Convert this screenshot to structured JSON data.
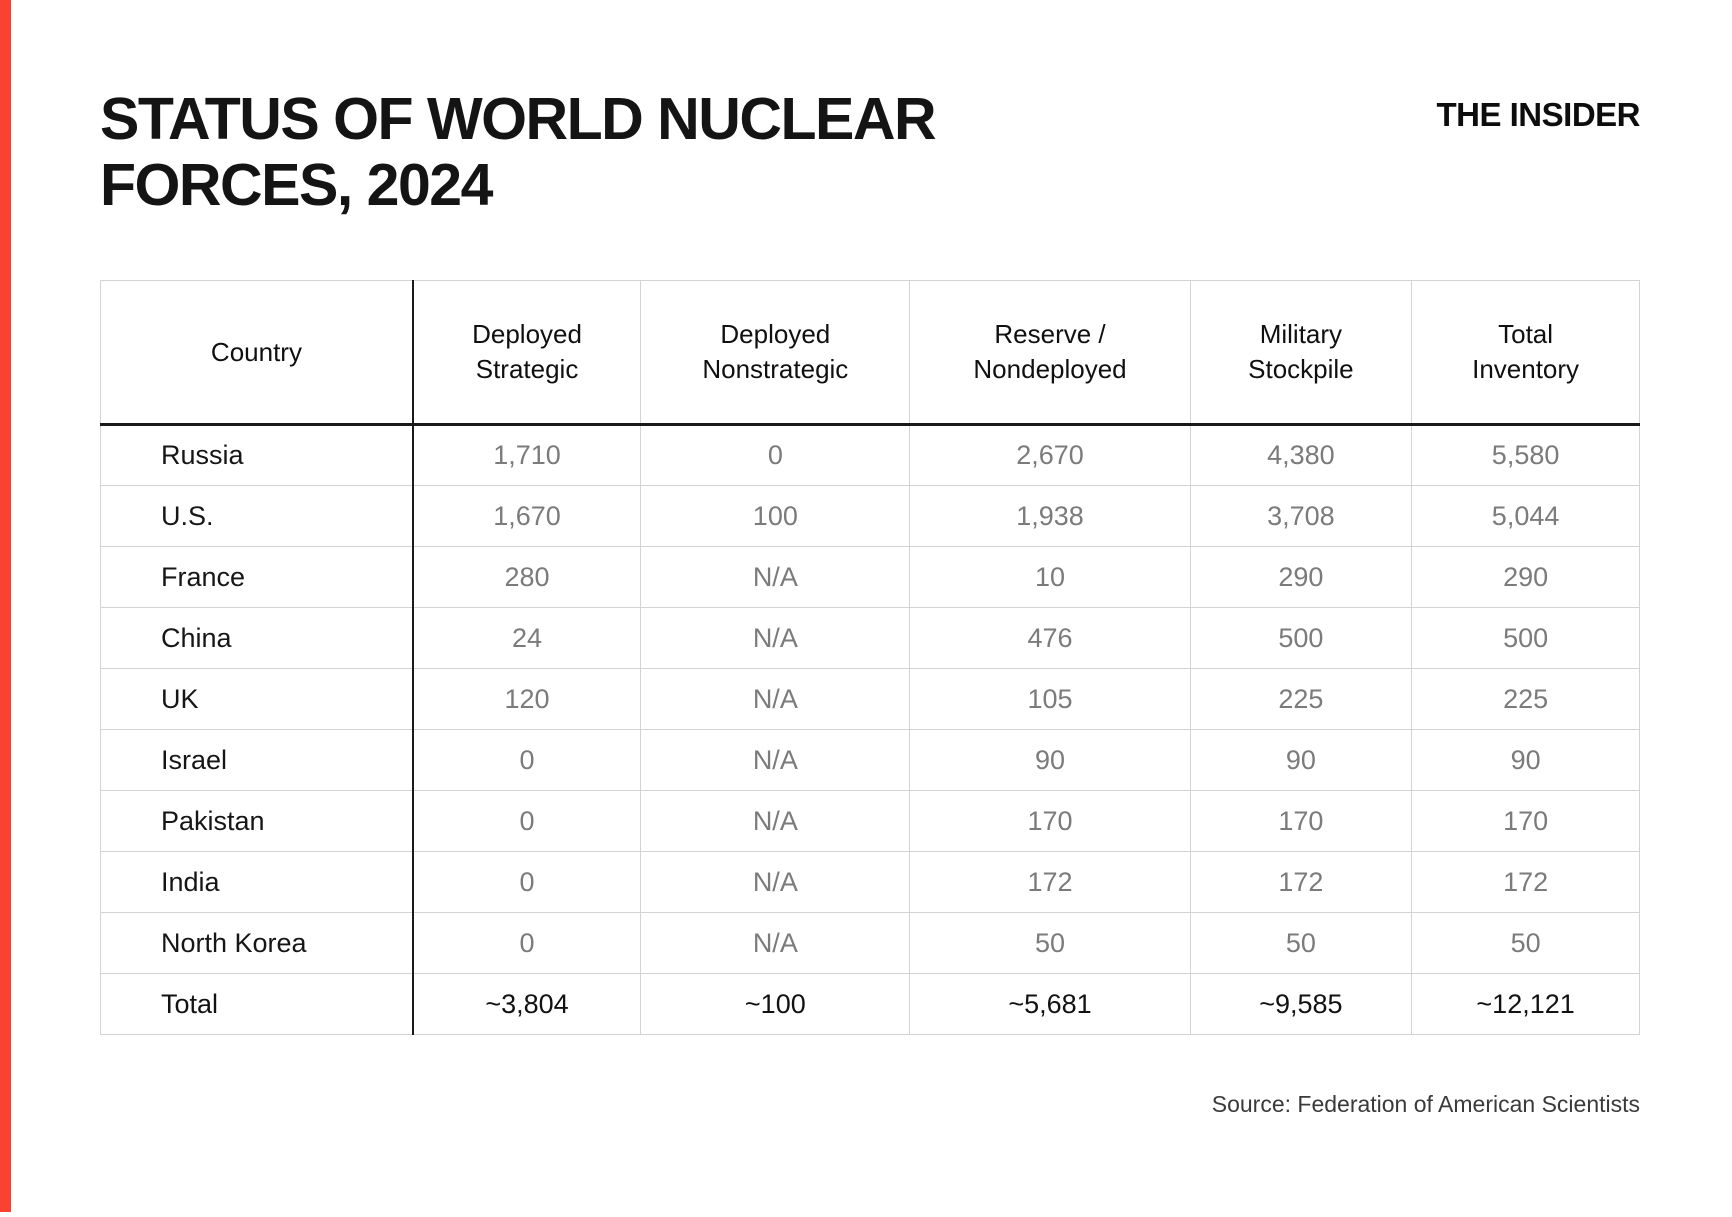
{
  "page": {
    "title_line1": "STATUS OF WORLD NUCLEAR",
    "title_line2": "FORCES, 2024",
    "brand": "THE INSIDER",
    "source": "Source: Federation of American Scientists"
  },
  "colors": {
    "accent_red": "#FA4230",
    "number_gray": "#7b7b7b",
    "border_light": "#d3d3d3",
    "border_dark": "#1a1a1a"
  },
  "chart_data": {
    "type": "table",
    "title": "STATUS OF WORLD NUCLEAR FORCES, 2024",
    "columns": [
      "Country",
      "Deployed\nStrategic",
      "Deployed\nNonstrategic",
      "Reserve /\nNondeployed",
      "Military\nStockpile",
      "Total\nInventory"
    ],
    "column_widths_pct": [
      20.3,
      14.8,
      17.5,
      18.2,
      14.4,
      14.8
    ],
    "rows": [
      [
        "Russia",
        "1,710",
        "0",
        "2,670",
        "4,380",
        "5,580"
      ],
      [
        "U.S.",
        "1,670",
        "100",
        "1,938",
        "3,708",
        "5,044"
      ],
      [
        "France",
        "280",
        "N/A",
        "10",
        "290",
        "290"
      ],
      [
        "China",
        "24",
        "N/A",
        "476",
        "500",
        "500"
      ],
      [
        "UK",
        "120",
        "N/A",
        "105",
        "225",
        "225"
      ],
      [
        "Israel",
        "0",
        "N/A",
        "90",
        "90",
        "90"
      ],
      [
        "Pakistan",
        "0",
        "N/A",
        "170",
        "170",
        "170"
      ],
      [
        "India",
        "0",
        "N/A",
        "172",
        "172",
        "172"
      ],
      [
        "North Korea",
        "0",
        "N/A",
        "50",
        "50",
        "50"
      ],
      [
        "Total",
        "~3,804",
        "~100",
        "~5,681",
        "~9,585",
        "~12,121"
      ]
    ],
    "total_row_label": "Total",
    "source": "Source: Federation of American Scientists"
  }
}
